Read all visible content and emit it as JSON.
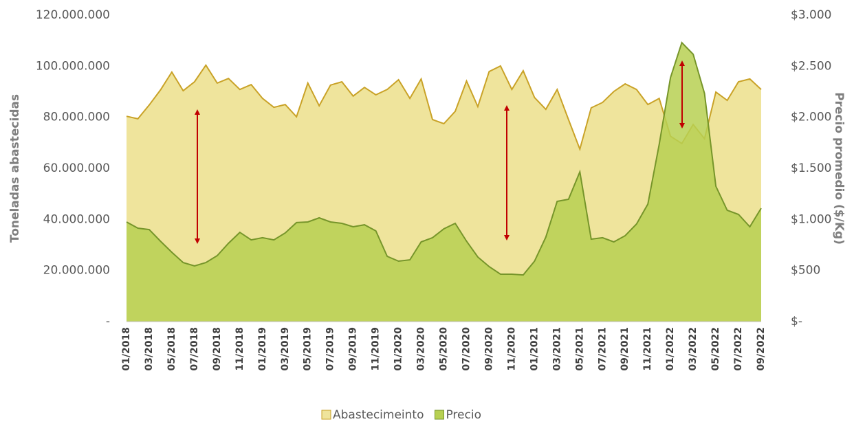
{
  "chart_data": {
    "type": "area",
    "y_label": "Toneladas abastecidas",
    "y2_label": "Precio promedio ($/Kg)",
    "categories": [
      "01/2018",
      null,
      "03/2018",
      null,
      "05/2018",
      null,
      "07/2018",
      null,
      "09/2018",
      null,
      "11/2018",
      null,
      "01/2019",
      null,
      "03/2019",
      null,
      "05/2019",
      null,
      "07/2019",
      null,
      "09/2019",
      null,
      "11/2019",
      null,
      "01/2020",
      null,
      "03/2020",
      null,
      "05/2020",
      null,
      "07/2020",
      null,
      "09/2020",
      null,
      "11/2020",
      null,
      "01/2021",
      null,
      "03/2021",
      null,
      "05/2021",
      null,
      "07/2021",
      null,
      "09/2021",
      null,
      "11/2021",
      null,
      "01/2022",
      null,
      "03/2022",
      null,
      "05/2022",
      null,
      "07/2022",
      null,
      "09/2022"
    ],
    "series": [
      {
        "name": "Abastecimeinto",
        "color": "#c9a227",
        "fill": "#efe49c",
        "axis": "y",
        "values": [
          80400000,
          79400000,
          84800000,
          90700000,
          97700000,
          90400000,
          93900000,
          100400000,
          93400000,
          95200000,
          90900000,
          92800000,
          87400000,
          83900000,
          85000000,
          80200000,
          93400000,
          84500000,
          92600000,
          93900000,
          88300000,
          91700000,
          88800000,
          90900000,
          94700000,
          87400000,
          95000000,
          79100000,
          77500000,
          82300000,
          94200000,
          84200000,
          97900000,
          100100000,
          90900000,
          98200000,
          87700000,
          83100000,
          90900000,
          79100000,
          67500000,
          83700000,
          85800000,
          90100000,
          93100000,
          90900000,
          85000000,
          87400000,
          72600000,
          69700000,
          77200000,
          71600000,
          89900000,
          86600000,
          93900000,
          95000000,
          90900000
        ]
      },
      {
        "name": "Precio",
        "color": "#76952a",
        "fill": "#b7d052",
        "axis": "y2",
        "values": [
          975,
          915,
          901,
          787,
          679,
          578,
          545,
          578,
          646,
          767,
          874,
          800,
          821,
          800,
          868,
          969,
          975,
          1016,
          975,
          962,
          928,
          948,
          888,
          639,
          592,
          605,
          780,
          821,
          908,
          962,
          787,
          632,
          538,
          464,
          464,
          457,
          592,
          827,
          1177,
          1197,
          1466,
          807,
          821,
          780,
          841,
          955,
          1150,
          1735,
          2388,
          2731,
          2617,
          2233,
          1325,
          1090,
          1049,
          928,
          1110
        ]
      }
    ],
    "ylim": [
      0,
      120000000
    ],
    "yticks": [
      {
        "value": 0,
        "label": "-"
      },
      {
        "value": 20000000,
        "label": "20.000.000"
      },
      {
        "value": 40000000,
        "label": "40.000.000"
      },
      {
        "value": 60000000,
        "label": "60.000.000"
      },
      {
        "value": 80000000,
        "label": "80.000.000"
      },
      {
        "value": 100000000,
        "label": "100.000.000"
      },
      {
        "value": 120000000,
        "label": "120.000.000"
      }
    ],
    "y2lim": [
      0,
      3000
    ],
    "y2ticks": [
      {
        "value": 0,
        "label": "$-"
      },
      {
        "value": 500,
        "label": "$500"
      },
      {
        "value": 1000,
        "label": "$1.000"
      },
      {
        "value": 1500,
        "label": "$1.500"
      },
      {
        "value": 2000,
        "label": "$2.000"
      },
      {
        "value": 2500,
        "label": "$2.500"
      },
      {
        "value": 3000,
        "label": "$3.000"
      }
    ],
    "legend": "bottom"
  }
}
